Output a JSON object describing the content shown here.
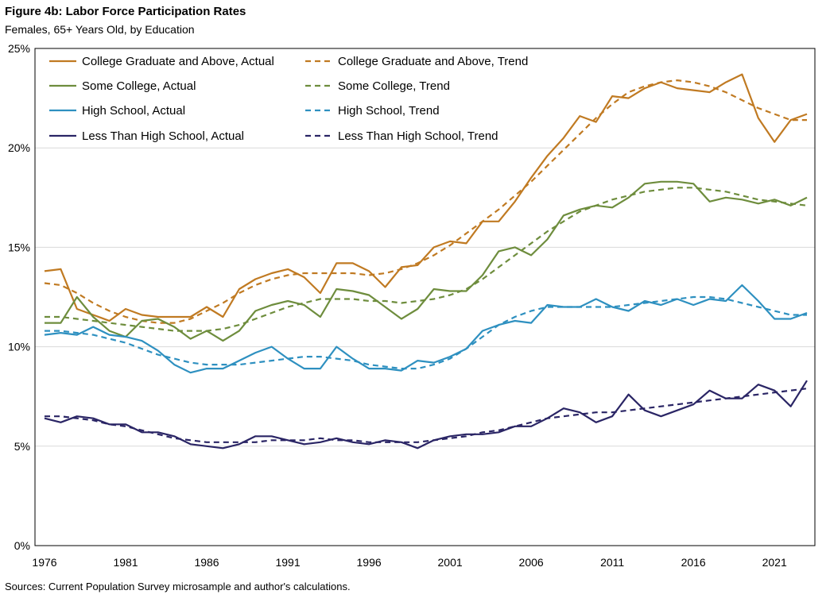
{
  "title": "Figure 4b: Labor Force Participation Rates",
  "subtitle": "Females, 65+ Years Old, by Education",
  "source": "Sources: Current Population Survey microsample and author's calculations.",
  "chart_data": {
    "type": "line",
    "title": "Figure 4b: Labor Force Participation Rates",
    "subtitle": "Females, 65+ Years Old, by Education",
    "xlabel": "",
    "ylabel": "",
    "xlim": [
      1976,
      2023
    ],
    "ylim": [
      0,
      25
    ],
    "xticks": [
      1976,
      1981,
      1986,
      1991,
      1996,
      2001,
      2006,
      2011,
      2016,
      2021
    ],
    "yticks": [
      0,
      5,
      10,
      15,
      20,
      25
    ],
    "ytick_labels": [
      "0%",
      "5%",
      "10%",
      "15%",
      "20%",
      "25%"
    ],
    "grid": "horizontal",
    "legend_position": "top-left",
    "x": [
      1976,
      1977,
      1978,
      1979,
      1980,
      1981,
      1982,
      1983,
      1984,
      1985,
      1986,
      1987,
      1988,
      1989,
      1990,
      1991,
      1992,
      1993,
      1994,
      1995,
      1996,
      1997,
      1998,
      1999,
      2000,
      2001,
      2002,
      2003,
      2004,
      2005,
      2006,
      2007,
      2008,
      2009,
      2010,
      2011,
      2012,
      2013,
      2014,
      2015,
      2016,
      2017,
      2018,
      2019,
      2020,
      2021,
      2022,
      2023
    ],
    "series": [
      {
        "name": "College Graduate and Above, Actual",
        "style": "solid",
        "color": "#c07a22",
        "values": [
          13.8,
          13.9,
          11.9,
          11.6,
          11.3,
          11.9,
          11.6,
          11.5,
          11.5,
          11.5,
          12.0,
          11.5,
          12.9,
          13.4,
          13.7,
          13.9,
          13.5,
          12.7,
          14.2,
          14.2,
          13.8,
          13.0,
          14.0,
          14.1,
          15.0,
          15.3,
          15.2,
          16.3,
          16.3,
          17.3,
          18.5,
          19.6,
          20.5,
          21.6,
          21.3,
          22.6,
          22.5,
          23.0,
          23.3,
          23.0,
          22.9,
          22.8,
          23.3,
          23.7,
          21.5,
          20.3,
          21.4,
          21.7
        ]
      },
      {
        "name": "College Graduate and Above, Trend",
        "style": "dashed",
        "color": "#c07a22",
        "values": [
          13.2,
          13.1,
          12.7,
          12.2,
          11.8,
          11.5,
          11.3,
          11.2,
          11.2,
          11.4,
          11.8,
          12.2,
          12.7,
          13.1,
          13.4,
          13.6,
          13.7,
          13.7,
          13.7,
          13.7,
          13.6,
          13.7,
          13.9,
          14.2,
          14.6,
          15.1,
          15.7,
          16.3,
          16.9,
          17.6,
          18.3,
          19.1,
          19.9,
          20.7,
          21.5,
          22.2,
          22.8,
          23.1,
          23.3,
          23.4,
          23.3,
          23.1,
          22.8,
          22.4,
          22.0,
          21.7,
          21.4,
          21.4
        ]
      },
      {
        "name": "Some College, Actual",
        "style": "solid",
        "color": "#6e8d3d",
        "values": [
          11.2,
          11.2,
          12.5,
          11.5,
          10.8,
          10.5,
          11.3,
          11.4,
          11.0,
          10.4,
          10.8,
          10.3,
          10.8,
          11.8,
          12.1,
          12.3,
          12.1,
          11.5,
          12.9,
          12.8,
          12.6,
          12.0,
          11.4,
          11.9,
          12.9,
          12.8,
          12.8,
          13.6,
          14.8,
          15.0,
          14.6,
          15.4,
          16.6,
          16.9,
          17.1,
          17.0,
          17.5,
          18.2,
          18.3,
          18.3,
          18.2,
          17.3,
          17.5,
          17.4,
          17.2,
          17.4,
          17.1,
          17.5
        ]
      },
      {
        "name": "Some College, Trend",
        "style": "dashed",
        "color": "#6e8d3d",
        "values": [
          11.5,
          11.5,
          11.4,
          11.3,
          11.2,
          11.1,
          11.0,
          10.9,
          10.8,
          10.8,
          10.8,
          10.9,
          11.1,
          11.4,
          11.7,
          12.0,
          12.2,
          12.4,
          12.4,
          12.4,
          12.3,
          12.3,
          12.2,
          12.3,
          12.4,
          12.6,
          12.9,
          13.4,
          14.0,
          14.6,
          15.2,
          15.8,
          16.3,
          16.8,
          17.1,
          17.4,
          17.6,
          17.8,
          17.9,
          18.0,
          18.0,
          17.9,
          17.8,
          17.6,
          17.4,
          17.3,
          17.2,
          17.1
        ]
      },
      {
        "name": "High School, Actual",
        "style": "solid",
        "color": "#2e90c0",
        "values": [
          10.6,
          10.7,
          10.6,
          11.0,
          10.6,
          10.5,
          10.3,
          9.8,
          9.1,
          8.7,
          8.9,
          8.9,
          9.3,
          9.7,
          10.0,
          9.4,
          8.9,
          8.9,
          10.0,
          9.4,
          8.9,
          8.9,
          8.8,
          9.3,
          9.2,
          9.5,
          9.9,
          10.8,
          11.1,
          11.3,
          11.2,
          12.1,
          12.0,
          12.0,
          12.4,
          12.0,
          11.8,
          12.3,
          12.1,
          12.4,
          12.1,
          12.4,
          12.3,
          13.1,
          12.3,
          11.4,
          11.4,
          11.7
        ]
      },
      {
        "name": "High School, Trend",
        "style": "dashed",
        "color": "#2e90c0",
        "values": [
          10.8,
          10.8,
          10.7,
          10.6,
          10.4,
          10.2,
          9.9,
          9.6,
          9.4,
          9.2,
          9.1,
          9.1,
          9.1,
          9.2,
          9.3,
          9.4,
          9.5,
          9.5,
          9.4,
          9.3,
          9.1,
          9.0,
          8.9,
          8.9,
          9.1,
          9.4,
          9.9,
          10.5,
          11.1,
          11.5,
          11.8,
          12.0,
          12.0,
          12.0,
          12.0,
          12.0,
          12.1,
          12.2,
          12.3,
          12.4,
          12.5,
          12.5,
          12.4,
          12.2,
          12.0,
          11.8,
          11.6,
          11.6
        ]
      },
      {
        "name": "Less Than High School, Actual",
        "style": "solid",
        "color": "#2a2565",
        "values": [
          6.4,
          6.2,
          6.5,
          6.4,
          6.1,
          6.1,
          5.7,
          5.7,
          5.5,
          5.1,
          5.0,
          4.9,
          5.1,
          5.5,
          5.5,
          5.3,
          5.1,
          5.2,
          5.4,
          5.2,
          5.1,
          5.3,
          5.2,
          4.9,
          5.3,
          5.5,
          5.6,
          5.6,
          5.7,
          6.0,
          6.0,
          6.4,
          6.9,
          6.7,
          6.2,
          6.5,
          7.6,
          6.8,
          6.5,
          6.8,
          7.1,
          7.8,
          7.4,
          7.4,
          8.1,
          7.8,
          7.0,
          8.3
        ]
      },
      {
        "name": "Less Than High School, Trend",
        "style": "dashed",
        "color": "#2a2565",
        "values": [
          6.5,
          6.5,
          6.4,
          6.3,
          6.1,
          6.0,
          5.8,
          5.6,
          5.4,
          5.3,
          5.2,
          5.2,
          5.2,
          5.2,
          5.3,
          5.3,
          5.3,
          5.4,
          5.3,
          5.3,
          5.2,
          5.2,
          5.2,
          5.2,
          5.3,
          5.4,
          5.5,
          5.7,
          5.8,
          6.0,
          6.2,
          6.4,
          6.5,
          6.6,
          6.7,
          6.7,
          6.8,
          6.9,
          7.0,
          7.1,
          7.2,
          7.3,
          7.4,
          7.5,
          7.6,
          7.7,
          7.8,
          7.9
        ]
      }
    ]
  }
}
